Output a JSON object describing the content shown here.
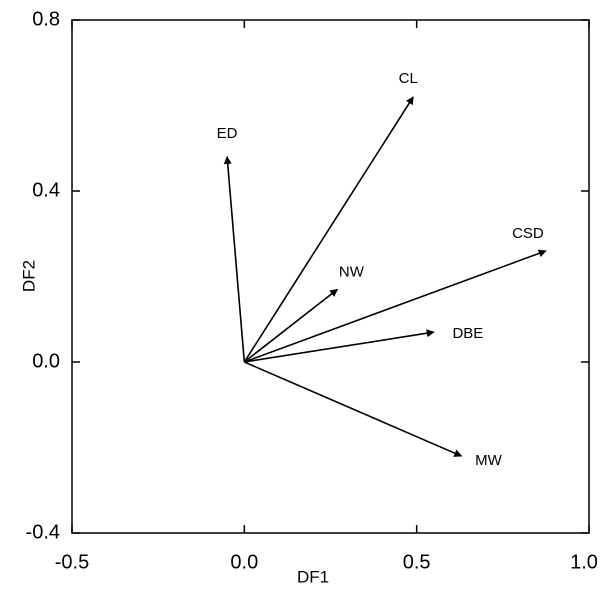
{
  "chart_data": {
    "type": "vector",
    "x_label": "DF1",
    "y_label": "DF2",
    "xlim": [
      -0.5,
      1.0
    ],
    "ylim": [
      -0.4,
      0.8
    ],
    "xticks": [
      -0.5,
      {
        "value": 0,
        "label": "0.0"
      },
      0.5,
      {
        "value": 1,
        "label": "1.0"
      }
    ],
    "yticks": [
      -0.4,
      {
        "value": 0,
        "label": "0.0"
      },
      0.4,
      0.8
    ],
    "color": "#000000",
    "vectors": [
      {
        "name": "ED",
        "x": -0.05,
        "y": 0.48
      },
      {
        "name": "CL",
        "x": 0.49,
        "y": 0.62
      },
      {
        "name": "CSD",
        "x": 0.875,
        "y": 0.26
      },
      {
        "name": "NW",
        "x": 0.27,
        "y": 0.17
      },
      {
        "name": "DBE",
        "x": 0.55,
        "y": 0.07
      },
      {
        "name": "MW",
        "x": 0.63,
        "y": -0.22
      }
    ]
  }
}
